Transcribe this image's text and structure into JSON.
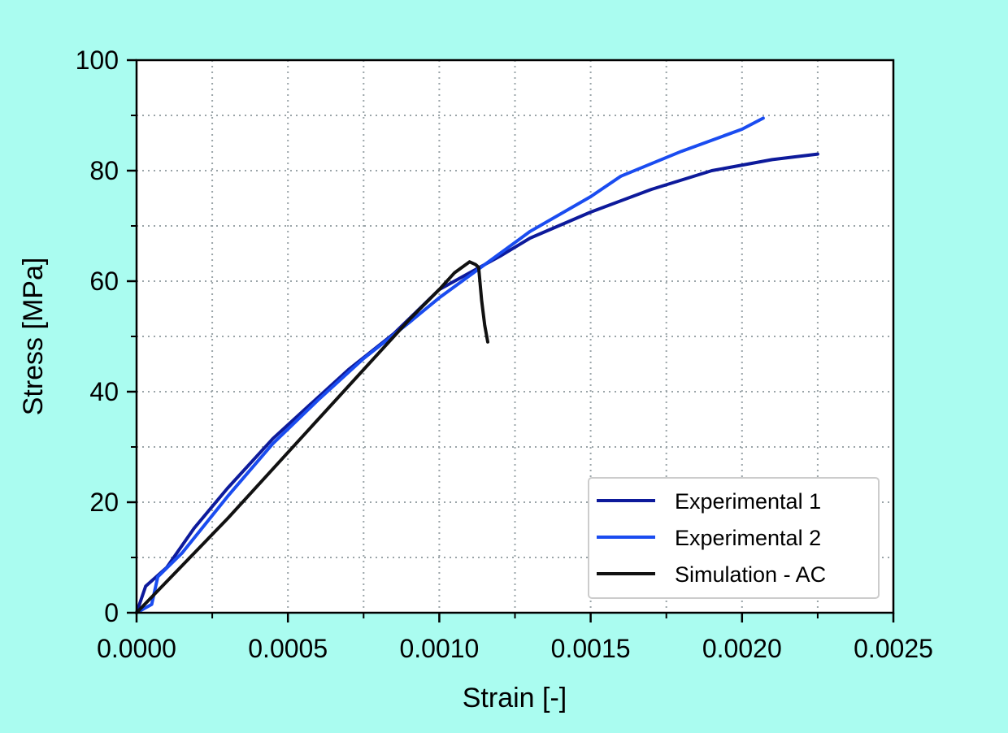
{
  "chart_data": {
    "type": "line",
    "xlabel": "Strain [-]",
    "ylabel": "Stress [MPa]",
    "xlim": [
      0,
      0.0025
    ],
    "ylim": [
      0,
      100
    ],
    "xticks": [
      "0.0000",
      "0.0005",
      "0.0010",
      "0.0015",
      "0.0020",
      "0.0025"
    ],
    "yticks": [
      "0",
      "20",
      "40",
      "60",
      "80",
      "100"
    ],
    "x_tick_values": [
      0,
      0.0005,
      0.001,
      0.0015,
      0.002,
      0.0025
    ],
    "y_tick_values": [
      0,
      20,
      40,
      60,
      80,
      100
    ],
    "x_minor_ticks": [
      0.00025,
      0.00075,
      0.00125,
      0.00175,
      0.00225
    ],
    "y_minor_ticks": [
      10,
      30,
      50,
      70,
      90
    ],
    "grid": true,
    "legend_position": "lower-right",
    "series": [
      {
        "name": "Experimental 1",
        "color": "#0d1a9b",
        "x": [
          0,
          3e-05,
          0.0001,
          0.00019,
          0.0003,
          0.00045,
          0.0006,
          0.0007,
          0.00085,
          0.001,
          0.0011,
          0.0012,
          0.0013,
          0.0015,
          0.0017,
          0.0019,
          0.0021,
          0.00225
        ],
        "y": [
          0,
          4.8,
          8.2,
          15.3,
          22.5,
          31.5,
          39,
          44,
          50.5,
          58.5,
          61.5,
          64.5,
          67.8,
          72.5,
          76.6,
          80,
          82,
          83
        ]
      },
      {
        "name": "Experimental 2",
        "color": "#1a4cf0",
        "x": [
          0,
          5e-05,
          7e-05,
          0.00015,
          0.0003,
          0.00045,
          0.0006,
          0.00075,
          0.0009,
          0.001,
          0.0011,
          0.0012,
          0.0013,
          0.0015,
          0.0016,
          0.0018,
          0.002,
          0.00207
        ],
        "y": [
          0,
          1.5,
          6.5,
          10.8,
          21,
          30.6,
          38.5,
          46,
          52.5,
          57,
          61,
          65,
          69,
          75.3,
          79,
          83.5,
          87.5,
          89.5
        ]
      },
      {
        "name": "Simulation - AC",
        "color": "#111111",
        "x": [
          0,
          0.0003,
          0.0006,
          0.0009,
          0.001,
          0.00105,
          0.0011,
          0.00112,
          0.00113,
          0.00114,
          0.00115,
          0.00116
        ],
        "y": [
          0,
          17,
          35,
          53,
          58.5,
          61.5,
          63.5,
          63,
          62.5,
          56.5,
          52,
          49
        ]
      }
    ]
  }
}
